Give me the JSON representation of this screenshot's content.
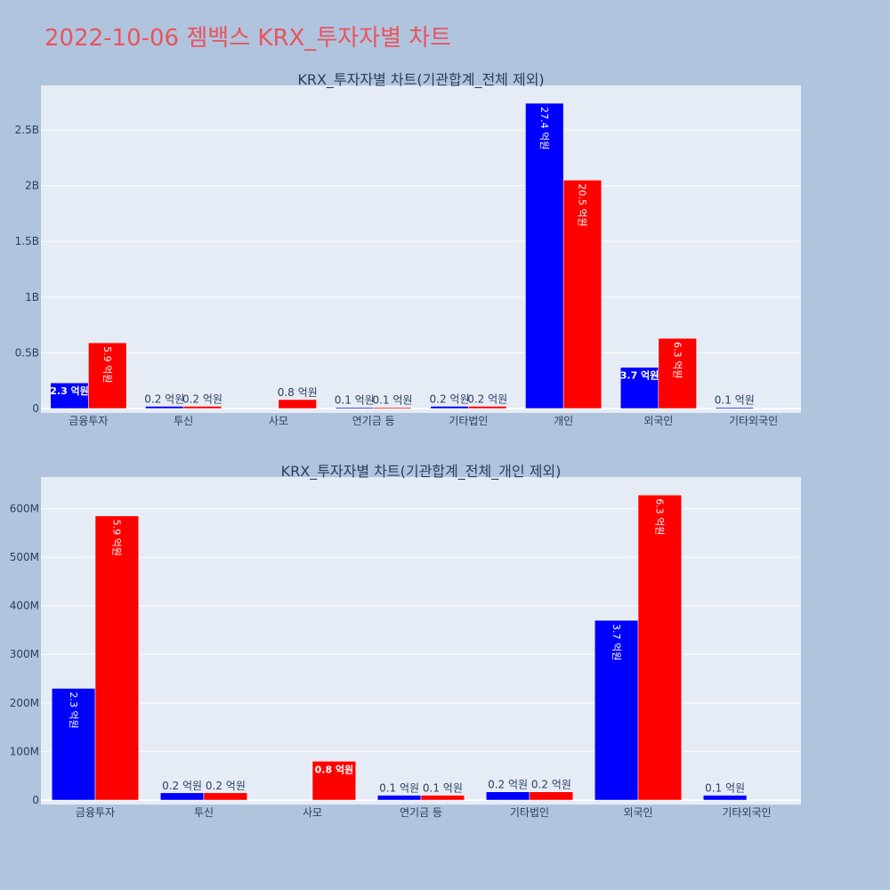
{
  "title": "2022-10-06 젬백스 KRX_투자자별 차트",
  "colors": {
    "series_a": "#0000ff",
    "series_b": "#ff0000",
    "plot_bg": "#e5ecf6",
    "page_bg": "#b0c4de",
    "title": "#e8545f"
  },
  "chart_data": [
    {
      "type": "bar",
      "title": "KRX_투자자별 차트(기관합계_전체 제외)",
      "categories": [
        "금융투자",
        "투신",
        "사모",
        "연기금 등",
        "기타법인",
        "개인",
        "외국인",
        "기타외국인"
      ],
      "ylim": [
        0,
        2900000000
      ],
      "yticks": [
        0,
        500000000,
        1000000000,
        1500000000,
        2000000000,
        2500000000
      ],
      "ytick_labels": [
        "0",
        "0.5B",
        "1B",
        "1.5B",
        "2B",
        "2.5B"
      ],
      "series": [
        {
          "color": "#0000ff",
          "values": [
            230000000,
            20000000,
            0,
            10000000,
            20000000,
            2740000000,
            370000000,
            10000000
          ],
          "labels": [
            "2.3 억원",
            "0.2 억원",
            "",
            "0.1 억원",
            "0.2 억원",
            "27.4 억원",
            "3.7 억원",
            "0.1 억원"
          ]
        },
        {
          "color": "#ff0000",
          "values": [
            590000000,
            20000000,
            80000000,
            10000000,
            20000000,
            2050000000,
            630000000,
            0
          ],
          "labels": [
            "5.9 억원",
            "0.2 억원",
            "0.8 억원",
            "0.1 억원",
            "0.2 억원",
            "20.5 억원",
            "6.3 억원",
            ""
          ]
        }
      ]
    },
    {
      "type": "bar",
      "title": "KRX_투자자별 차트(기관합계_전체_개인 제외)",
      "categories": [
        "금융투자",
        "투신",
        "사모",
        "연기금 등",
        "기타법인",
        "외국인",
        "기타외국인"
      ],
      "ylim": [
        0,
        665000000
      ],
      "yticks": [
        0,
        100000000,
        200000000,
        300000000,
        400000000,
        500000000,
        600000000
      ],
      "ytick_labels": [
        "0",
        "100M",
        "200M",
        "300M",
        "400M",
        "500M",
        "600M"
      ],
      "series": [
        {
          "color": "#0000ff",
          "values": [
            230000000,
            15000000,
            0,
            10000000,
            17000000,
            370000000,
            10000000
          ],
          "labels": [
            "2.3 억원",
            "0.2 억원",
            "",
            "0.1 억원",
            "0.2 억원",
            "3.7 억원",
            "0.1 억원"
          ]
        },
        {
          "color": "#ff0000",
          "values": [
            585000000,
            15000000,
            80000000,
            10000000,
            17000000,
            628000000,
            0
          ],
          "labels": [
            "5.9 억원",
            "0.2 억원",
            "0.8 억원",
            "0.1 억원",
            "0.2 억원",
            "6.3 억원",
            ""
          ]
        }
      ]
    }
  ]
}
